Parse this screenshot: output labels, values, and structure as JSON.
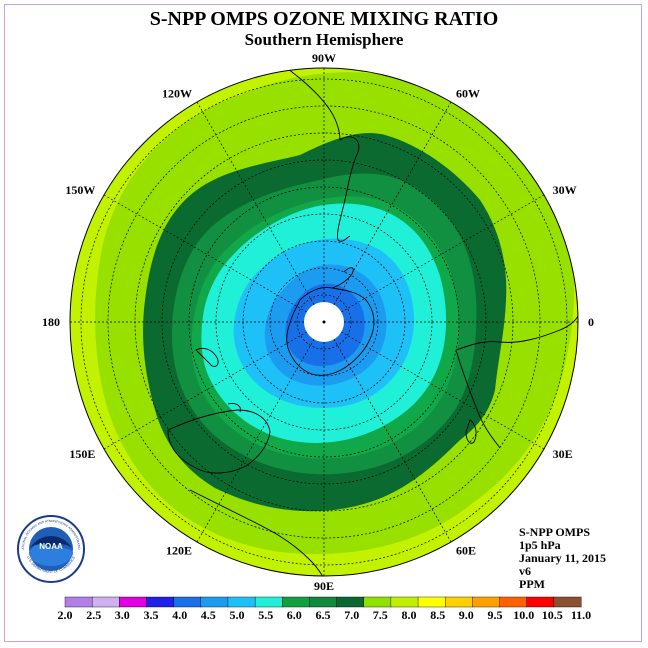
{
  "title": "S-NPP OMPS OZONE MIXING RATIO",
  "subtitle": "Southern Hemisphere",
  "longitude_labels": [
    {
      "label": "0",
      "lon": 0
    },
    {
      "label": "30E",
      "lon": 30
    },
    {
      "label": "60E",
      "lon": 60
    },
    {
      "label": "90E",
      "lon": 90
    },
    {
      "label": "120E",
      "lon": 120
    },
    {
      "label": "150E",
      "lon": 150
    },
    {
      "label": "180",
      "lon": 180
    },
    {
      "label": "150W",
      "lon": -150
    },
    {
      "label": "120W",
      "lon": -120
    },
    {
      "label": "90W",
      "lon": -90
    },
    {
      "label": "60W",
      "lon": -60
    },
    {
      "label": "30W",
      "lon": -30
    }
  ],
  "info": {
    "instrument": "S-NPP OMPS",
    "level": "1p5 hPa",
    "date": "January 11, 2015",
    "version": "v6",
    "units": "PPM"
  },
  "colorbar": {
    "ticks": [
      "2.0",
      "2.5",
      "3.0",
      "3.5",
      "4.0",
      "4.5",
      "5.0",
      "5.5",
      "6.0",
      "6.5",
      "7.0",
      "7.5",
      "8.0",
      "8.5",
      "9.0",
      "9.5",
      "10.0",
      "10.5",
      "11.0"
    ],
    "colors": [
      "#b080e8",
      "#d0b0f0",
      "#e000e0",
      "#2020e8",
      "#1870e8",
      "#1c9cf0",
      "#1ec0f8",
      "#20f0d8",
      "#10a040",
      "#108840",
      "#086830",
      "#90e000",
      "#c0f000",
      "#ffff00",
      "#ffd000",
      "#ffa000",
      "#ff6000",
      "#ff0000",
      "#8c5030"
    ]
  },
  "map_colors": {
    "level_7_5": "#c2f200",
    "level_7_0": "#98e000",
    "level_6_5": "#0b6a30",
    "level_6_0": "#109040",
    "level_5_5": "#10a848",
    "level_5_0": "#20f0d8",
    "level_4_5": "#1ec0f8",
    "level_4_0": "#1c9cf0",
    "level_3_5": "#1870e8",
    "no_data": "#ffffff"
  },
  "logo": {
    "text": "NOAA",
    "ring_text": "NATIONAL OCEANIC AND ATMOSPHERIC ADMINISTRATION",
    "ring_text_bottom": "U.S. DEPARTMENT OF COMMERCE"
  }
}
